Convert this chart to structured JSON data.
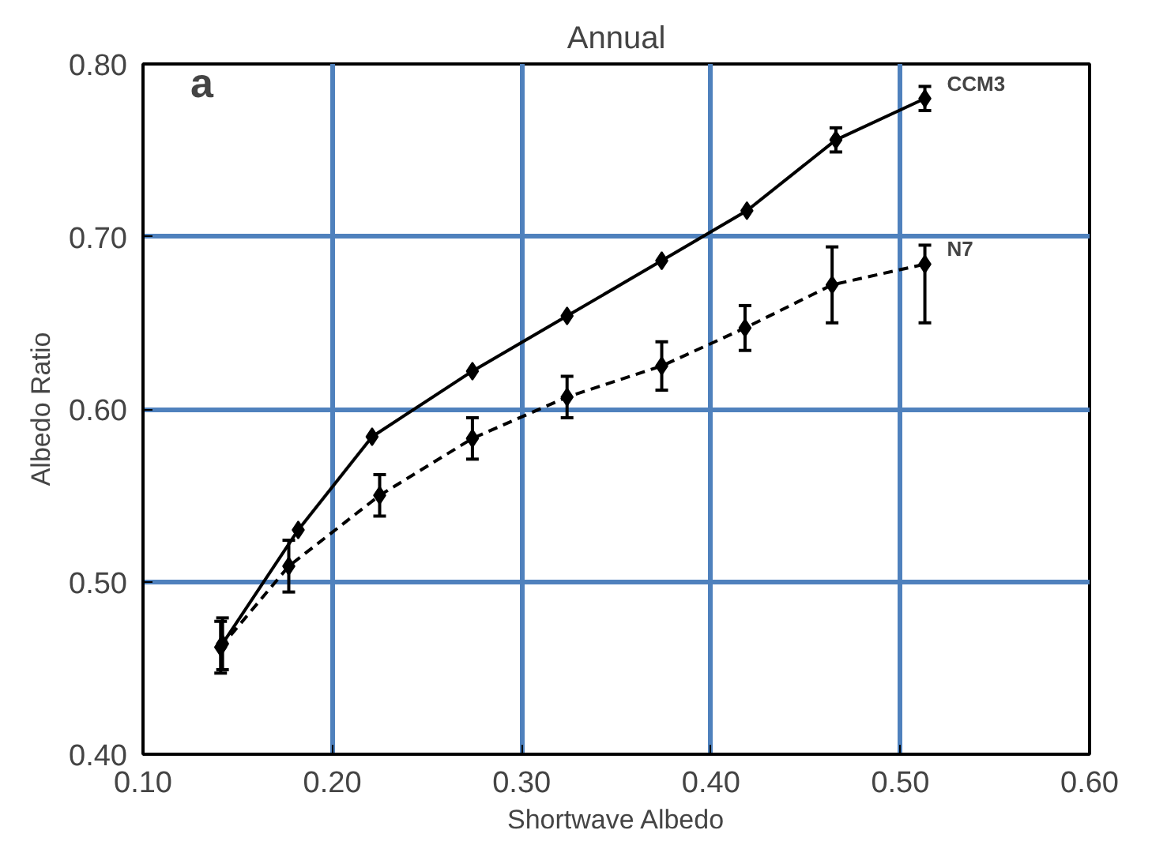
{
  "chart_data": {
    "type": "line",
    "title": "Annual",
    "xlabel": "Shortwave Albedo",
    "ylabel": "Albedo Ratio",
    "annotations": [
      "a"
    ],
    "series": [
      {
        "name": "CCM3",
        "color": "#000000",
        "line_style": "solid",
        "x": [
          0.142,
          0.182,
          0.221,
          0.274,
          0.324,
          0.374,
          0.419,
          0.466,
          0.513
        ],
        "values": [
          0.464,
          0.53,
          0.584,
          0.622,
          0.654,
          0.686,
          0.715,
          0.756,
          0.78
        ],
        "errors": [
          0.015,
          null,
          null,
          null,
          null,
          null,
          null,
          0.007,
          0.007
        ]
      },
      {
        "name": "N7",
        "color": "#000000",
        "line_style": "dashed",
        "x": [
          0.141,
          0.177,
          0.225,
          0.274,
          0.324,
          0.374,
          0.418,
          0.464,
          0.513
        ],
        "values": [
          0.462,
          0.509,
          0.55,
          0.583,
          0.607,
          0.625,
          0.647,
          0.672,
          0.684
        ],
        "errors": [
          0.015,
          0.015,
          0.012,
          0.012,
          0.012,
          0.014,
          0.013,
          [
            0.65,
            0.694
          ],
          [
            0.65,
            0.695
          ]
        ]
      }
    ],
    "marker": "diamond",
    "xlim": [
      0.1,
      0.6
    ],
    "ylim": [
      0.4,
      0.8
    ],
    "xticks": [
      {
        "value": 0.1,
        "label": "0.10"
      },
      {
        "value": 0.2,
        "label": "0.20"
      },
      {
        "value": 0.3,
        "label": "0.30"
      },
      {
        "value": 0.4,
        "label": "0.40"
      },
      {
        "value": 0.5,
        "label": "0.50"
      },
      {
        "value": 0.6,
        "label": "0.60"
      }
    ],
    "yticks": [
      {
        "value": 0.4,
        "label": "0.40"
      },
      {
        "value": 0.5,
        "label": "0.50"
      },
      {
        "value": 0.6,
        "label": "0.60"
      },
      {
        "value": 0.7,
        "label": "0.70"
      },
      {
        "value": 0.8,
        "label": "0.80"
      }
    ],
    "grid": true,
    "legend": false
  }
}
